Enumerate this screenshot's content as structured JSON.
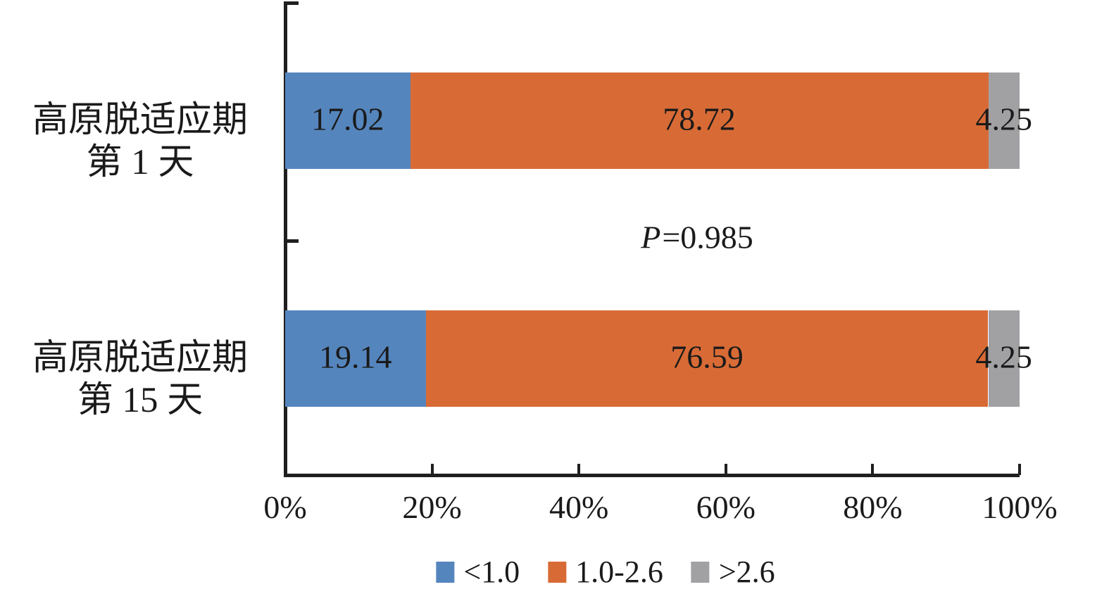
{
  "chart_data": {
    "type": "bar",
    "orientation": "horizontal",
    "stacked": true,
    "unit": "%",
    "title": "",
    "xlabel": "",
    "ylabel": "",
    "grid": false,
    "categories": [
      {
        "lines": [
          "高原脱适应期",
          "第 1 天"
        ]
      },
      {
        "lines": [
          "高原脱适应期",
          "第 15 天"
        ]
      }
    ],
    "series": [
      {
        "name": "<1.0",
        "color": "#5585BD",
        "values": [
          17.02,
          19.14
        ]
      },
      {
        "name": "1.0-2.6",
        "color": "#D86B35",
        "values": [
          78.72,
          76.59
        ]
      },
      {
        "name": ">2.6",
        "color": "#A1A1A4",
        "values": [
          4.25,
          4.25
        ]
      }
    ],
    "annotation": {
      "variable": "P",
      "rest": "=0.985"
    },
    "x_axis": {
      "min": 0,
      "max": 100,
      "ticks": [
        "0%",
        "20%",
        "40%",
        "60%",
        "80%",
        "100%"
      ]
    },
    "legend_position": "bottom",
    "colors": {
      "axis": "#1f1f1f",
      "text": "#1a1a1a",
      "background": "#ffffff"
    }
  }
}
